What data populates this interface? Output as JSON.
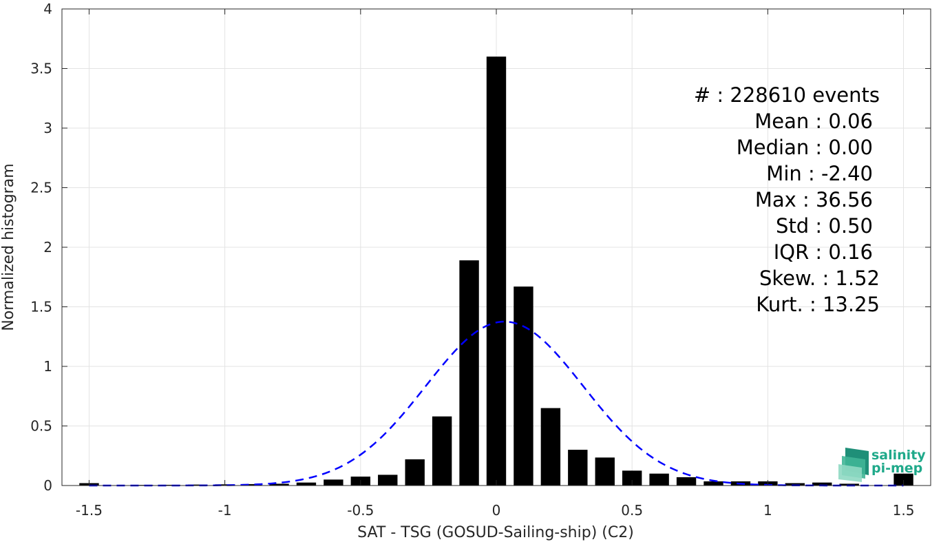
{
  "chart_data": {
    "type": "bar",
    "xlabel": "SAT - TSG (GOSUD-Sailing-ship) (C2)",
    "ylabel": "Normalized histogram",
    "xlim": [
      -1.6,
      1.6
    ],
    "ylim": [
      0,
      4
    ],
    "xticks": [
      "-1.5",
      "-1",
      "-0.5",
      "0",
      "0.5",
      "1",
      "1.5"
    ],
    "yticks": [
      "0",
      "0.5",
      "1",
      "1.5",
      "2",
      "2.5",
      "3",
      "3.5",
      "4"
    ],
    "grid": true,
    "bin_width": 0.1,
    "x": [
      -1.5,
      -1.4,
      -1.3,
      -1.2,
      -1.1,
      -1.0,
      -0.9,
      -0.8,
      -0.7,
      -0.6,
      -0.5,
      -0.4,
      -0.3,
      -0.2,
      -0.1,
      0.0,
      0.1,
      0.2,
      0.3,
      0.4,
      0.5,
      0.6,
      0.7,
      0.8,
      0.9,
      1.0,
      1.1,
      1.2,
      1.3,
      1.5
    ],
    "values": [
      0.02,
      0.003,
      0.005,
      0.006,
      0.008,
      0.01,
      0.012,
      0.015,
      0.025,
      0.05,
      0.075,
      0.09,
      0.22,
      0.58,
      1.89,
      3.6,
      1.67,
      0.65,
      0.3,
      0.235,
      0.125,
      0.1,
      0.07,
      0.035,
      0.035,
      0.035,
      0.02,
      0.025,
      0.015,
      0.1
    ],
    "fit": {
      "type": "normal",
      "mean": 0.03,
      "std": 0.29,
      "color": "#0000ff",
      "style": "dashed"
    },
    "bar_color": "#000000"
  },
  "stats": {
    "events": "#  : 228610 events",
    "mean": "Mean : 0.06",
    "median": "Median : 0.00",
    "min": "Min : -2.40",
    "max": "Max : 36.56",
    "std": "Std : 0.50",
    "iqr": "IQR : 0.16",
    "skew": "Skew. : 1.52",
    "kurt": "Kurt. : 13.25"
  },
  "logo": {
    "line1": "salinity",
    "line2": "pi-mep",
    "color": "#1fa98a"
  }
}
